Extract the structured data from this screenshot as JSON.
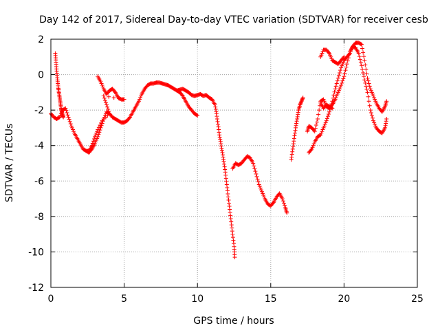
{
  "chart_data": {
    "type": "scatter",
    "title": "Day 142 of 2017, Sidereal Day-to-day VTEC variation (SDTVAR) for receiver cesb",
    "xlabel": "GPS time / hours",
    "ylabel": "SDTVAR / TECUs",
    "xlim": [
      0,
      25
    ],
    "ylim": [
      -12,
      2
    ],
    "xticks": [
      0,
      5,
      10,
      15,
      20,
      25
    ],
    "yticks": [
      -12,
      -10,
      -8,
      -6,
      -4,
      -2,
      0,
      2
    ],
    "xtick_labels": [
      "0",
      "5",
      "10",
      "15",
      "20",
      "25"
    ],
    "ytick_labels": [
      "-12",
      "-10",
      "-8",
      "-6",
      "-4",
      "-2",
      "0",
      "2"
    ],
    "grid": true,
    "marker": "+",
    "color": "#ff0000",
    "series": [
      {
        "name": "track-1",
        "points": [
          [
            0.0,
            -2.2
          ],
          [
            0.2,
            -2.4
          ],
          [
            0.4,
            -2.5
          ],
          [
            0.6,
            -2.4
          ],
          [
            0.8,
            -2.0
          ],
          [
            1.0,
            -1.9
          ],
          [
            1.2,
            -2.4
          ],
          [
            1.4,
            -2.9
          ],
          [
            1.6,
            -3.3
          ],
          [
            1.8,
            -3.6
          ],
          [
            2.0,
            -3.9
          ],
          [
            2.2,
            -4.2
          ],
          [
            2.4,
            -4.3
          ],
          [
            2.6,
            -4.4
          ],
          [
            2.8,
            -4.2
          ],
          [
            3.0,
            -3.9
          ],
          [
            3.2,
            -3.5
          ],
          [
            3.4,
            -3.0
          ],
          [
            3.6,
            -2.5
          ],
          [
            3.8,
            -2.1
          ],
          [
            4.0,
            -2.2
          ],
          [
            4.2,
            -2.4
          ],
          [
            4.4,
            -2.5
          ],
          [
            4.6,
            -2.6
          ],
          [
            4.8,
            -2.7
          ],
          [
            5.0,
            -2.7
          ],
          [
            5.2,
            -2.6
          ],
          [
            5.4,
            -2.4
          ],
          [
            5.6,
            -2.1
          ],
          [
            5.8,
            -1.8
          ],
          [
            6.0,
            -1.5
          ],
          [
            6.2,
            -1.1
          ],
          [
            6.4,
            -0.8
          ],
          [
            6.6,
            -0.6
          ],
          [
            6.8,
            -0.5
          ],
          [
            7.0,
            -0.5
          ],
          [
            7.2,
            -0.45
          ],
          [
            7.4,
            -0.45
          ],
          [
            7.6,
            -0.5
          ],
          [
            7.8,
            -0.55
          ],
          [
            8.0,
            -0.6
          ],
          [
            8.2,
            -0.7
          ],
          [
            8.4,
            -0.8
          ],
          [
            8.6,
            -0.9
          ],
          [
            8.8,
            -1.0
          ],
          [
            9.0,
            -1.2
          ],
          [
            9.2,
            -1.5
          ],
          [
            9.4,
            -1.8
          ],
          [
            9.6,
            -2.0
          ],
          [
            9.8,
            -2.2
          ],
          [
            10.0,
            -2.3
          ]
        ]
      },
      {
        "name": "track-2",
        "points": [
          [
            0.3,
            1.2
          ],
          [
            0.35,
            0.7
          ],
          [
            0.4,
            0.2
          ],
          [
            0.45,
            -0.3
          ],
          [
            0.5,
            -0.7
          ],
          [
            0.55,
            -1.0
          ],
          [
            0.6,
            -1.3
          ],
          [
            0.65,
            -1.6
          ],
          [
            0.7,
            -1.9
          ],
          [
            0.75,
            -2.1
          ],
          [
            0.8,
            -2.3
          ],
          [
            0.85,
            -2.4
          ]
        ]
      },
      {
        "name": "track-3",
        "points": [
          [
            3.2,
            -0.1
          ],
          [
            3.4,
            -0.4
          ],
          [
            3.6,
            -0.8
          ],
          [
            3.8,
            -1.1
          ],
          [
            4.0,
            -0.9
          ],
          [
            4.2,
            -0.8
          ],
          [
            4.4,
            -1.0
          ],
          [
            4.6,
            -1.3
          ],
          [
            4.8,
            -1.4
          ],
          [
            5.0,
            -1.4
          ],
          [
            3.6,
            -1.2
          ],
          [
            3.8,
            -1.7
          ],
          [
            4.0,
            -2.2
          ],
          [
            3.5,
            -2.6
          ],
          [
            3.2,
            -3.1
          ],
          [
            3.0,
            -3.5
          ],
          [
            2.8,
            -4.0
          ],
          [
            2.6,
            -4.3
          ],
          [
            2.4,
            -4.3
          ]
        ]
      },
      {
        "name": "track-4",
        "points": [
          [
            8.6,
            -0.9
          ],
          [
            8.8,
            -0.85
          ],
          [
            9.0,
            -0.8
          ],
          [
            9.2,
            -0.9
          ],
          [
            9.4,
            -1.0
          ],
          [
            9.6,
            -1.15
          ],
          [
            9.8,
            -1.2
          ],
          [
            10.0,
            -1.15
          ],
          [
            10.2,
            -1.1
          ],
          [
            10.4,
            -1.2
          ],
          [
            10.6,
            -1.15
          ],
          [
            10.8,
            -1.3
          ],
          [
            11.0,
            -1.4
          ],
          [
            11.2,
            -1.7
          ],
          [
            11.3,
            -2.2
          ],
          [
            11.4,
            -2.8
          ],
          [
            11.5,
            -3.4
          ],
          [
            11.6,
            -3.9
          ],
          [
            11.7,
            -4.4
          ],
          [
            11.8,
            -4.9
          ],
          [
            11.9,
            -5.5
          ],
          [
            12.0,
            -6.2
          ],
          [
            12.1,
            -6.9
          ],
          [
            12.2,
            -7.6
          ],
          [
            12.3,
            -8.3
          ],
          [
            12.4,
            -9.0
          ],
          [
            12.5,
            -9.7
          ],
          [
            12.55,
            -10.3
          ]
        ]
      },
      {
        "name": "track-5",
        "points": [
          [
            12.4,
            -5.3
          ],
          [
            12.6,
            -5.0
          ],
          [
            12.8,
            -5.1
          ],
          [
            13.0,
            -5.0
          ],
          [
            13.2,
            -4.8
          ],
          [
            13.4,
            -4.6
          ],
          [
            13.6,
            -4.7
          ],
          [
            13.8,
            -5.0
          ],
          [
            14.0,
            -5.6
          ],
          [
            14.2,
            -6.2
          ],
          [
            14.4,
            -6.6
          ],
          [
            14.6,
            -7.0
          ],
          [
            14.8,
            -7.3
          ],
          [
            15.0,
            -7.4
          ],
          [
            15.2,
            -7.2
          ],
          [
            15.4,
            -6.9
          ],
          [
            15.6,
            -6.7
          ],
          [
            15.8,
            -7.0
          ],
          [
            16.0,
            -7.5
          ],
          [
            16.1,
            -7.8
          ]
        ]
      },
      {
        "name": "track-6",
        "points": [
          [
            16.4,
            -4.8
          ],
          [
            16.5,
            -4.2
          ],
          [
            16.6,
            -3.6
          ],
          [
            16.7,
            -3.0
          ],
          [
            16.8,
            -2.5
          ],
          [
            16.9,
            -2.0
          ],
          [
            17.0,
            -1.7
          ],
          [
            17.1,
            -1.5
          ],
          [
            17.2,
            -1.3
          ]
        ]
      },
      {
        "name": "track-7",
        "points": [
          [
            17.5,
            -3.2
          ],
          [
            17.6,
            -2.9
          ],
          [
            17.8,
            -3.0
          ],
          [
            18.0,
            -3.2
          ],
          [
            18.2,
            -2.5
          ],
          [
            18.4,
            -1.5
          ],
          [
            18.6,
            -1.4
          ],
          [
            18.8,
            -1.8
          ],
          [
            19.0,
            -1.9
          ],
          [
            19.2,
            -1.7
          ],
          [
            19.4,
            -1.4
          ],
          [
            19.6,
            -1.0
          ],
          [
            19.8,
            -0.6
          ],
          [
            20.0,
            -0.1
          ],
          [
            20.2,
            0.6
          ],
          [
            20.4,
            1.3
          ],
          [
            20.6,
            1.6
          ],
          [
            20.8,
            1.8
          ],
          [
            21.0,
            1.8
          ],
          [
            21.2,
            1.7
          ],
          [
            21.4,
            0.8
          ],
          [
            21.6,
            -0.2
          ],
          [
            21.8,
            -0.8
          ],
          [
            22.0,
            -1.2
          ],
          [
            22.2,
            -1.6
          ],
          [
            22.4,
            -1.9
          ],
          [
            22.6,
            -2.1
          ],
          [
            22.8,
            -1.8
          ],
          [
            22.9,
            -1.5
          ]
        ]
      },
      {
        "name": "track-8",
        "points": [
          [
            17.6,
            -4.4
          ],
          [
            17.8,
            -4.2
          ],
          [
            18.0,
            -3.8
          ],
          [
            18.2,
            -3.5
          ],
          [
            18.4,
            -3.4
          ],
          [
            18.6,
            -3.0
          ],
          [
            18.8,
            -2.6
          ],
          [
            19.0,
            -2.1
          ],
          [
            19.2,
            -1.5
          ],
          [
            19.4,
            -0.8
          ],
          [
            19.6,
            -0.2
          ],
          [
            19.8,
            0.4
          ],
          [
            20.0,
            0.8
          ],
          [
            20.2,
            1.0
          ],
          [
            20.4,
            1.2
          ],
          [
            20.6,
            1.6
          ],
          [
            20.8,
            1.5
          ],
          [
            21.0,
            1.2
          ],
          [
            21.2,
            0.5
          ],
          [
            21.4,
            -0.3
          ],
          [
            21.6,
            -1.0
          ],
          [
            21.8,
            -2.0
          ],
          [
            22.0,
            -2.6
          ],
          [
            22.2,
            -3.0
          ],
          [
            22.4,
            -3.2
          ],
          [
            22.6,
            -3.3
          ],
          [
            22.8,
            -3.0
          ],
          [
            22.9,
            -2.5
          ]
        ]
      },
      {
        "name": "track-9",
        "points": [
          [
            18.4,
            1.0
          ],
          [
            18.6,
            1.4
          ],
          [
            18.8,
            1.4
          ],
          [
            19.0,
            1.2
          ],
          [
            19.2,
            0.8
          ],
          [
            19.4,
            0.7
          ],
          [
            19.6,
            0.6
          ],
          [
            19.8,
            0.8
          ],
          [
            20.0,
            1.0
          ]
        ]
      },
      {
        "name": "track-10",
        "points": [
          [
            18.4,
            -1.6
          ],
          [
            18.6,
            -1.9
          ],
          [
            18.8,
            -1.7
          ],
          [
            19.0,
            -1.8
          ],
          [
            19.2,
            -1.9
          ]
        ]
      }
    ]
  }
}
